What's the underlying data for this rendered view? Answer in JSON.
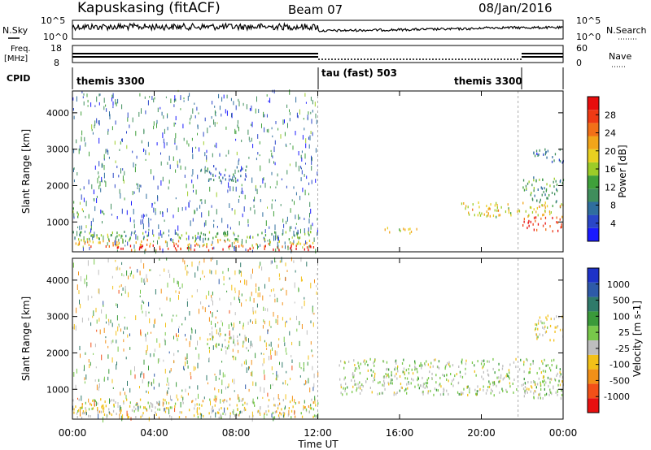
{
  "header": {
    "station": "Kapuskasing (fitACF)",
    "beam": "Beam 07",
    "date": "08/Jan/2016"
  },
  "summary": {
    "nsky_label": "N.Sky",
    "nsearch_label": "N.Search",
    "noise_ticks": [
      "10^5",
      "10^0"
    ],
    "freq_label_1": "Freq.",
    "freq_label_2": "[MHz]",
    "freq_ticks": [
      "18",
      "8"
    ],
    "nave_label": "Nave",
    "nave_ticks": [
      "60",
      "0"
    ],
    "cpid_label": "CPID",
    "cpid_segments": [
      "themis 3300",
      "tau (fast) 503",
      "themis 3300"
    ]
  },
  "x_axis": {
    "label": "Time UT",
    "ticks": [
      "00:00",
      "04:00",
      "08:00",
      "12:00",
      "16:00",
      "20:00",
      "00:00"
    ],
    "tick_hours": [
      0,
      4,
      8,
      12,
      16,
      20,
      24
    ]
  },
  "y_axis": {
    "label": "Slant Range [km]",
    "ticks": [
      "1000",
      "2000",
      "3000",
      "4000"
    ],
    "tick_values": [
      1000,
      2000,
      3000,
      4000
    ],
    "range": [
      180,
      4600
    ]
  },
  "power_scale": {
    "label": "Power [dB]",
    "ticks": [
      "4",
      "8",
      "12",
      "16",
      "20",
      "24",
      "28"
    ],
    "colors": [
      "#1a1aff",
      "#2a46c8",
      "#2f6e9e",
      "#3f8e5c",
      "#3fa03a",
      "#9ccc28",
      "#e8d020",
      "#f2a51a",
      "#f27018",
      "#ef3a14",
      "#e80d0d"
    ]
  },
  "velocity_scale": {
    "label": "Velocity [m s-1]",
    "ticks": [
      "1000",
      "500",
      "100",
      "25",
      "-25",
      "-100",
      "-500",
      "-1000"
    ],
    "colors": [
      "#1e32c8",
      "#2e5aa8",
      "#2f7a6a",
      "#3a9a3a",
      "#78c84a",
      "#bebebe",
      "#f2c018",
      "#f29018",
      "#f25018",
      "#e81010"
    ]
  },
  "chart_data": [
    {
      "type": "heatmap",
      "name": "power",
      "title": "Kapuskasing (fitACF) Beam 07 08/Jan/2016",
      "xlabel": "Time UT",
      "ylabel": "Slant Range [km]",
      "xlim": [
        0,
        24
      ],
      "ylim": [
        180,
        4600
      ],
      "colorbar": "Power [dB]",
      "colorbar_range": [
        0,
        30
      ],
      "regions": [
        {
          "t0": 0.0,
          "t1": 12.0,
          "r0": 180,
          "r1": 320,
          "value": 28
        },
        {
          "t0": 0.0,
          "t1": 12.0,
          "r0": 320,
          "r1": 480,
          "value": 20
        },
        {
          "t0": 0.0,
          "t1": 12.0,
          "r0": 480,
          "r1": 700,
          "value": 12
        },
        {
          "t0": 0.0,
          "t1": 0.5,
          "r0": 1050,
          "r1": 1350,
          "value": 16
        },
        {
          "t0": 6.5,
          "t1": 8.5,
          "r0": 2050,
          "r1": 2500,
          "value": 6
        },
        {
          "t0": 15.0,
          "t1": 17.0,
          "r0": 650,
          "r1": 800,
          "value": 18
        },
        {
          "t0": 19.0,
          "t1": 24.0,
          "r0": 1100,
          "r1": 1500,
          "value": 18
        },
        {
          "t0": 22.0,
          "t1": 24.0,
          "r0": 700,
          "r1": 1100,
          "value": 28
        },
        {
          "t0": 22.0,
          "t1": 24.0,
          "r0": 1500,
          "r1": 2200,
          "value": 10
        },
        {
          "t0": 22.5,
          "t1": 24.0,
          "r0": 2600,
          "r1": 3000,
          "value": 6
        }
      ]
    },
    {
      "type": "heatmap",
      "name": "velocity",
      "xlabel": "Time UT",
      "ylabel": "Slant Range [km]",
      "xlim": [
        0,
        24
      ],
      "ylim": [
        180,
        4600
      ],
      "colorbar": "Velocity [m s-1]",
      "colorbar_range": [
        -1000,
        1000
      ],
      "regions": [
        {
          "t0": 0.0,
          "t1": 12.0,
          "r0": 180,
          "r1": 700,
          "value": -200
        },
        {
          "t0": 6.5,
          "t1": 8.5,
          "r0": 2050,
          "r1": 2500,
          "value": 0
        },
        {
          "t0": 13.0,
          "t1": 24.0,
          "r0": 800,
          "r1": 1800,
          "value": 0
        },
        {
          "t0": 22.0,
          "t1": 24.0,
          "r0": 700,
          "r1": 1200,
          "value": -100
        },
        {
          "t0": 22.5,
          "t1": 24.0,
          "r0": 2300,
          "r1": 3000,
          "value": -150
        }
      ]
    }
  ]
}
